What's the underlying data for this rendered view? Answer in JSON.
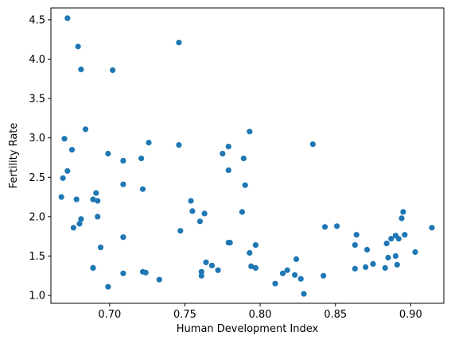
{
  "chart_data": {
    "type": "scatter",
    "title": "",
    "xlabel": "Human Development Index",
    "ylabel": "Fertility Rate",
    "xlim": [
      0.661,
      0.922
    ],
    "ylim": [
      0.9,
      4.65
    ],
    "xticks": [
      0.7,
      0.75,
      0.8,
      0.85,
      0.9
    ],
    "xtick_labels": [
      "0.70",
      "0.75",
      "0.80",
      "0.85",
      "0.90"
    ],
    "yticks": [
      1.0,
      1.5,
      2.0,
      2.5,
      3.0,
      3.5,
      4.0,
      4.5
    ],
    "ytick_labels": [
      "1.0",
      "1.5",
      "2.0",
      "2.5",
      "3.0",
      "3.5",
      "4.0",
      "4.5"
    ],
    "grid": false,
    "legend": "none",
    "color": "#1f77b4",
    "x": [
      0.672,
      0.679,
      0.681,
      0.702,
      0.746,
      0.668,
      0.675,
      0.684,
      0.699,
      0.709,
      0.726,
      0.746,
      0.67,
      0.672,
      0.669,
      0.689,
      0.691,
      0.709,
      0.722,
      0.721,
      0.754,
      0.755,
      0.763,
      0.76,
      0.747,
      0.678,
      0.68,
      0.681,
      0.676,
      0.689,
      0.692,
      0.692,
      0.694,
      0.709,
      0.689,
      0.709,
      0.699,
      0.722,
      0.724,
      0.733,
      0.761,
      0.761,
      0.764,
      0.768,
      0.772,
      0.775,
      0.779,
      0.779,
      0.78,
      0.789,
      0.79,
      0.793,
      0.788,
      0.779,
      0.797,
      0.793,
      0.794,
      0.797,
      0.81,
      0.815,
      0.818,
      0.823,
      0.824,
      0.827,
      0.829,
      0.835,
      0.842,
      0.843,
      0.851,
      0.863,
      0.864,
      0.863,
      0.87,
      0.871,
      0.875,
      0.883,
      0.884,
      0.885,
      0.887,
      0.89,
      0.89,
      0.891,
      0.892,
      0.894,
      0.895,
      0.896,
      0.903,
      0.914
    ],
    "y": [
      4.52,
      4.16,
      3.87,
      3.86,
      4.21,
      2.25,
      2.85,
      3.11,
      2.8,
      2.71,
      2.94,
      2.91,
      2.99,
      2.58,
      2.49,
      2.22,
      2.3,
      2.41,
      2.35,
      2.74,
      2.2,
      2.07,
      2.04,
      1.94,
      1.82,
      2.22,
      1.91,
      1.97,
      1.86,
      1.35,
      2.2,
      2.0,
      1.61,
      1.74,
      1.35,
      1.28,
      1.11,
      1.3,
      1.29,
      1.2,
      1.3,
      1.25,
      1.42,
      1.38,
      1.32,
      2.8,
      2.89,
      2.59,
      1.67,
      2.74,
      2.4,
      3.08,
      2.06,
      1.67,
      1.64,
      1.54,
      1.37,
      1.35,
      1.15,
      1.28,
      1.32,
      1.26,
      1.46,
      1.21,
      1.02,
      2.92,
      1.25,
      1.87,
      1.88,
      1.64,
      1.77,
      1.34,
      1.36,
      1.58,
      1.4,
      1.35,
      1.66,
      1.48,
      1.72,
      1.76,
      1.5,
      1.39,
      1.72,
      1.98,
      2.06,
      1.77,
      1.55,
      1.86
    ]
  }
}
